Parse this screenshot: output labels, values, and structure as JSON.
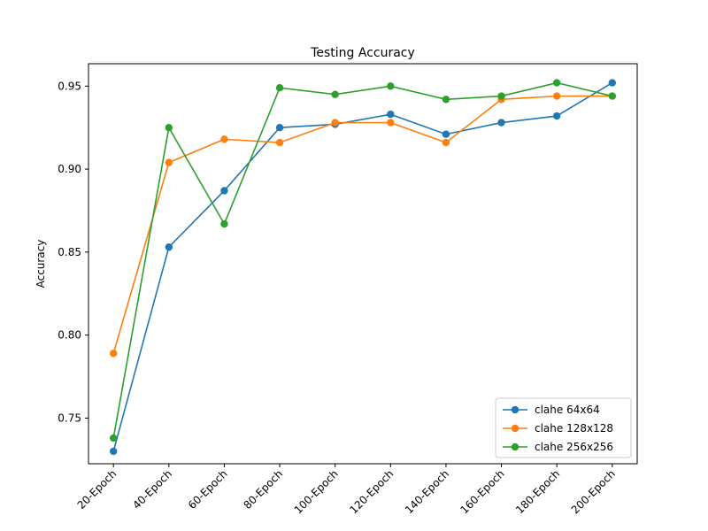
{
  "chart_data": {
    "type": "line",
    "title": "Testing Accuracy",
    "xlabel": "",
    "ylabel": "Accuracy",
    "categories": [
      "20-Epoch",
      "40-Epoch",
      "60-Epoch",
      "80-Epoch",
      "100-Epoch",
      "120-Epoch",
      "140-Epoch",
      "160-Epoch",
      "180-Epoch",
      "200-Epoch"
    ],
    "ylim": [
      0.7225,
      0.9635
    ],
    "yticks": [
      "0.75",
      "0.80",
      "0.85",
      "0.90",
      "0.95"
    ],
    "grid": false,
    "legend_position": "bottom-right",
    "series": [
      {
        "name": "clahe 64x64",
        "color": "#1f77b4",
        "values": [
          0.73,
          0.853,
          0.887,
          0.925,
          0.927,
          0.933,
          0.921,
          0.928,
          0.932,
          0.952
        ]
      },
      {
        "name": "clahe 128x128",
        "color": "#ff7f0e",
        "values": [
          0.789,
          0.904,
          0.918,
          0.916,
          0.928,
          0.928,
          0.916,
          0.942,
          0.944,
          0.944
        ]
      },
      {
        "name": "clahe 256x256",
        "color": "#2ca02c",
        "values": [
          0.738,
          0.925,
          0.867,
          0.949,
          0.945,
          0.95,
          0.942,
          0.944,
          0.952,
          0.944
        ]
      }
    ]
  }
}
